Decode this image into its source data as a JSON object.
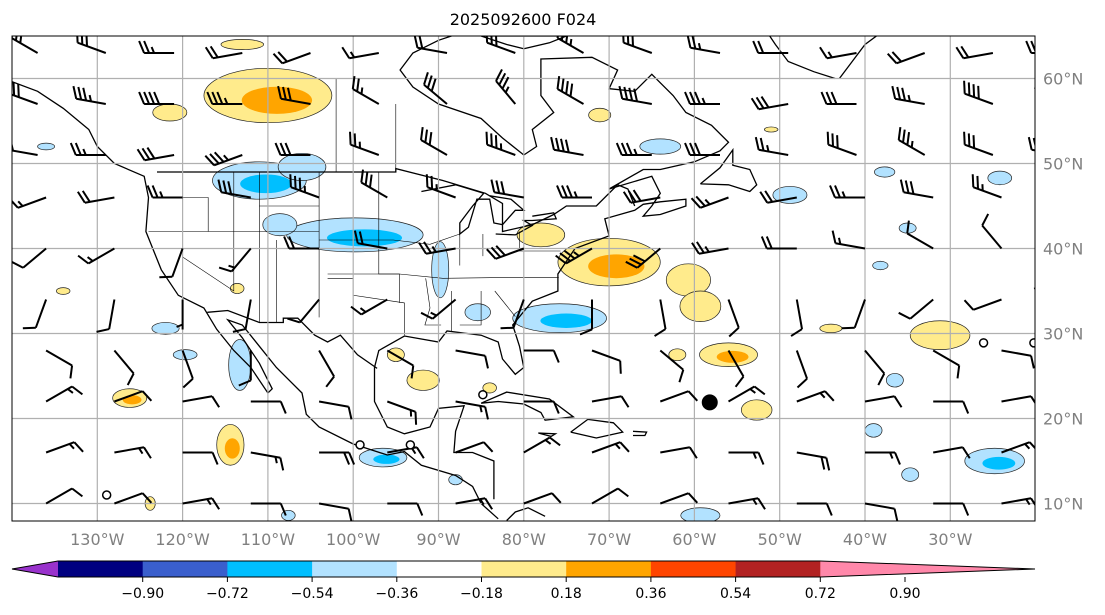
{
  "chart_data": {
    "type": "map",
    "title": "2025092600 F024",
    "extent": {
      "lon": [
        -140,
        -20
      ],
      "lat": [
        7.9,
        65
      ]
    },
    "grid": true,
    "lat_ticks": [
      {
        "value": 60,
        "label": "60°N"
      },
      {
        "value": 50,
        "label": "50°N"
      },
      {
        "value": 40,
        "label": "40°N"
      },
      {
        "value": 30,
        "label": "30°N"
      },
      {
        "value": 20,
        "label": "20°N"
      },
      {
        "value": 10,
        "label": "10°N"
      }
    ],
    "lon_ticks": [
      {
        "value": -130,
        "label": "130°W"
      },
      {
        "value": -120,
        "label": "120°W"
      },
      {
        "value": -110,
        "label": "110°W"
      },
      {
        "value": -100,
        "label": "100°W"
      },
      {
        "value": -90,
        "label": "90°W"
      },
      {
        "value": -80,
        "label": "80°W"
      },
      {
        "value": -70,
        "label": "70°W"
      },
      {
        "value": -60,
        "label": "60°W"
      },
      {
        "value": -50,
        "label": "50°W"
      },
      {
        "value": -40,
        "label": "40°W"
      },
      {
        "value": -30,
        "label": "30°W"
      }
    ],
    "colorbar": {
      "extend": "both",
      "colors": [
        "#9932cc",
        "#000080",
        "#3a5fcd",
        "#00bfff",
        "#b2e2ff",
        "#ffffff",
        "#ffeb8c",
        "#ffa500",
        "#ff4500",
        "#b22222",
        "#ff88aa"
      ],
      "levels": [
        -0.9,
        -0.72,
        -0.54,
        -0.36,
        -0.18,
        0.18,
        0.36,
        0.54,
        0.72,
        0.9
      ],
      "labels": [
        "−0.90",
        "−0.72",
        "−0.54",
        "−0.36",
        "−0.18",
        "0.18",
        "0.36",
        "0.54",
        "0.72",
        "0.90"
      ]
    },
    "contour_areas": [
      {
        "lon": -110,
        "lat": 58,
        "rx": 7.5,
        "ry": 3.2,
        "value": 0.4
      },
      {
        "lon": -113,
        "lat": 64,
        "rx": 2.5,
        "ry": 0.6,
        "value": 0.2
      },
      {
        "lon": -121.5,
        "lat": 56,
        "rx": 2,
        "ry": 1,
        "value": 0.2
      },
      {
        "lon": -70,
        "lat": 38.4,
        "rx": 6,
        "ry": 2.8,
        "value": 0.45
      },
      {
        "lon": -78,
        "lat": 41.6,
        "rx": 2.8,
        "ry": 1.4,
        "value": 0.2
      },
      {
        "lon": -60.7,
        "lat": 36.3,
        "rx": 2.6,
        "ry": 1.9,
        "value": 0.2
      },
      {
        "lon": -59.3,
        "lat": 33.2,
        "rx": 2.4,
        "ry": 1.8,
        "value": 0.2
      },
      {
        "lon": -56,
        "lat": 27.5,
        "rx": 3.4,
        "ry": 1.4,
        "value": 0.4
      },
      {
        "lon": -62,
        "lat": 27.5,
        "rx": 1,
        "ry": 0.7,
        "value": 0.2
      },
      {
        "lon": -52.7,
        "lat": 21,
        "rx": 1.8,
        "ry": 1.2,
        "value": 0.2
      },
      {
        "lon": -31.2,
        "lat": 29.8,
        "rx": 3.5,
        "ry": 1.7,
        "value": 0.25
      },
      {
        "lon": -44,
        "lat": 30.6,
        "rx": 1.3,
        "ry": 0.5,
        "value": 0.2
      },
      {
        "lon": -126.2,
        "lat": 22.4,
        "rx": 2,
        "ry": 1.1,
        "value": 0.4
      },
      {
        "lon": -114.4,
        "lat": 16.9,
        "rx": 1.6,
        "ry": 2.4,
        "value": 0.4
      },
      {
        "lon": -91.8,
        "lat": 24.5,
        "rx": 1.9,
        "ry": 1.2,
        "value": 0.2
      },
      {
        "lon": -95,
        "lat": 27.5,
        "rx": 1,
        "ry": 0.8,
        "value": 0.2
      },
      {
        "lon": -84,
        "lat": 23.6,
        "rx": 0.8,
        "ry": 0.6,
        "value": 0.2
      },
      {
        "lon": -134,
        "lat": 35,
        "rx": 0.8,
        "ry": 0.4,
        "value": 0.2
      },
      {
        "lon": -113.6,
        "lat": 35.3,
        "rx": 0.8,
        "ry": 0.6,
        "value": 0.2
      },
      {
        "lon": -123.8,
        "lat": 10,
        "rx": 0.6,
        "ry": 0.8,
        "value": 0.2
      },
      {
        "lon": -71.1,
        "lat": 55.7,
        "rx": 1.3,
        "ry": 0.8,
        "value": 0.2
      },
      {
        "lon": -51,
        "lat": 54,
        "rx": 0.8,
        "ry": 0.3,
        "value": 0.2
      },
      {
        "lon": -111,
        "lat": 48,
        "rx": 5.5,
        "ry": 2.2,
        "value": -0.4
      },
      {
        "lon": -106,
        "lat": 49.6,
        "rx": 2.8,
        "ry": 1.6,
        "value": -0.2
      },
      {
        "lon": -99.8,
        "lat": 41.6,
        "rx": 8,
        "ry": 2,
        "value": -0.42
      },
      {
        "lon": -108.6,
        "lat": 42.8,
        "rx": 2,
        "ry": 1.3,
        "value": -0.2
      },
      {
        "lon": -89.8,
        "lat": 37.5,
        "rx": 1,
        "ry": 3.3,
        "value": -0.25
      },
      {
        "lon": -75.8,
        "lat": 31.8,
        "rx": 5.5,
        "ry": 1.7,
        "value": -0.4
      },
      {
        "lon": -85.4,
        "lat": 32.5,
        "rx": 1.5,
        "ry": 1,
        "value": -0.2
      },
      {
        "lon": -113.3,
        "lat": 26.3,
        "rx": 1.3,
        "ry": 3,
        "value": -0.2
      },
      {
        "lon": -122,
        "lat": 30.6,
        "rx": 1.6,
        "ry": 0.7,
        "value": -0.2
      },
      {
        "lon": -119.7,
        "lat": 27.5,
        "rx": 1.4,
        "ry": 0.6,
        "value": -0.2
      },
      {
        "lon": -64,
        "lat": 52,
        "rx": 2.4,
        "ry": 0.9,
        "value": -0.2
      },
      {
        "lon": -48.8,
        "lat": 46.3,
        "rx": 2,
        "ry": 1,
        "value": -0.2
      },
      {
        "lon": -37.7,
        "lat": 49,
        "rx": 1.2,
        "ry": 0.6,
        "value": -0.2
      },
      {
        "lon": -24.2,
        "lat": 48.3,
        "rx": 1.4,
        "ry": 0.8,
        "value": -0.2
      },
      {
        "lon": -35,
        "lat": 42.4,
        "rx": 1,
        "ry": 0.6,
        "value": -0.2
      },
      {
        "lon": -38.2,
        "lat": 38,
        "rx": 0.9,
        "ry": 0.5,
        "value": -0.2
      },
      {
        "lon": -36.5,
        "lat": 24.5,
        "rx": 1,
        "ry": 0.8,
        "value": -0.2
      },
      {
        "lon": -39,
        "lat": 18.6,
        "rx": 1,
        "ry": 0.8,
        "value": -0.2
      },
      {
        "lon": -24.8,
        "lat": 15,
        "rx": 3.5,
        "ry": 1.5,
        "value": -0.42
      },
      {
        "lon": -34.7,
        "lat": 13.4,
        "rx": 1,
        "ry": 0.8,
        "value": -0.2
      },
      {
        "lon": -96.5,
        "lat": 15.4,
        "rx": 2.8,
        "ry": 1.1,
        "value": -0.4
      },
      {
        "lon": -88,
        "lat": 12.8,
        "rx": 0.8,
        "ry": 0.6,
        "value": -0.2
      },
      {
        "lon": -59.3,
        "lat": 8.6,
        "rx": 2.3,
        "ry": 0.9,
        "value": -0.2
      },
      {
        "lon": -136,
        "lat": 52,
        "rx": 1,
        "ry": 0.4,
        "value": -0.2
      },
      {
        "lon": -107.6,
        "lat": 8.6,
        "rx": 0.8,
        "ry": 0.6,
        "value": -0.2
      }
    ],
    "wind_barbs": {
      "lon_start": -137,
      "lon_step": 8,
      "rows": [
        {
          "lat": 63,
          "dir": [
            300,
            290,
            270,
            260,
            250,
            260,
            280,
            290,
            300,
            290,
            280,
            270,
            260,
            250,
            260,
            270
          ],
          "speed": [
            25,
            30,
            25,
            20,
            20,
            15,
            20,
            30,
            35,
            30,
            25,
            20,
            15,
            20,
            20,
            25
          ]
        },
        {
          "lat": 57,
          "dir": [
            290,
            280,
            270,
            270,
            280,
            300,
            310,
            320,
            300,
            280,
            270,
            260,
            270,
            280,
            290,
            300
          ],
          "speed": [
            30,
            35,
            40,
            35,
            30,
            25,
            30,
            35,
            40,
            40,
            35,
            30,
            30,
            35,
            40,
            35
          ]
        },
        {
          "lat": 51,
          "dir": [
            280,
            270,
            260,
            250,
            270,
            290,
            300,
            290,
            280,
            270,
            270,
            280,
            290,
            300,
            290,
            280
          ],
          "speed": [
            20,
            25,
            30,
            35,
            30,
            25,
            30,
            35,
            40,
            35,
            30,
            25,
            30,
            35,
            30,
            25
          ]
        },
        {
          "lat": 46,
          "dir": [
            250,
            260,
            270,
            280,
            290,
            300,
            290,
            280,
            270,
            260,
            250,
            260,
            270,
            280,
            290,
            300
          ],
          "speed": [
            15,
            20,
            25,
            30,
            35,
            30,
            25,
            30,
            35,
            30,
            25,
            20,
            25,
            30,
            25,
            20
          ]
        },
        {
          "lat": 40,
          "dir": [
            230,
            240,
            200,
            220,
            270,
            280,
            260,
            250,
            240,
            230,
            260,
            270,
            280,
            300,
            320,
            330
          ],
          "speed": [
            10,
            15,
            10,
            15,
            20,
            20,
            25,
            30,
            35,
            30,
            25,
            20,
            15,
            10,
            10,
            10
          ]
        },
        {
          "lat": 34,
          "dir": [
            200,
            190,
            180,
            190,
            220,
            240,
            230,
            200,
            180,
            170,
            160,
            170,
            200,
            230,
            250,
            270
          ],
          "speed": [
            10,
            10,
            5,
            10,
            10,
            15,
            15,
            10,
            10,
            10,
            10,
            10,
            10,
            10,
            10,
            10
          ]
        },
        {
          "lat": 28,
          "dir": [
            120,
            140,
            160,
            180,
            150,
            120,
            100,
            90,
            110,
            130,
            150,
            160,
            140,
            120,
            100,
            90
          ],
          "speed": [
            10,
            10,
            10,
            10,
            10,
            10,
            10,
            10,
            10,
            10,
            10,
            10,
            10,
            10,
            10,
            10
          ]
        },
        {
          "lat": 22,
          "dir": [
            60,
            70,
            80,
            90,
            100,
            110,
            100,
            90,
            80,
            70,
            60,
            70,
            80,
            90,
            80,
            70
          ],
          "speed": [
            15,
            10,
            10,
            10,
            10,
            15,
            15,
            10,
            10,
            10,
            15,
            15,
            10,
            10,
            10,
            10
          ]
        },
        {
          "lat": 16,
          "dir": [
            70,
            80,
            90,
            100,
            90,
            80,
            70,
            60,
            70,
            80,
            90,
            100,
            90,
            80,
            70,
            60
          ],
          "speed": [
            15,
            15,
            10,
            15,
            20,
            15,
            10,
            15,
            15,
            10,
            15,
            20,
            15,
            10,
            15,
            15
          ]
        },
        {
          "lat": 10,
          "dir": [
            60,
            70,
            80,
            90,
            100,
            90,
            80,
            70,
            60,
            70,
            80,
            90,
            100,
            90,
            80,
            70
          ],
          "speed": [
            10,
            10,
            15,
            10,
            10,
            10,
            15,
            10,
            10,
            10,
            15,
            10,
            10,
            10,
            15,
            10
          ]
        }
      ]
    },
    "markers": {
      "filled": [
        {
          "lon": -58.2,
          "lat": 21.9
        }
      ],
      "open": [
        {
          "lon": -128.9,
          "lat": 11
        },
        {
          "lon": -99.2,
          "lat": 16.9
        },
        {
          "lon": -93.3,
          "lat": 16.9
        },
        {
          "lon": -84.8,
          "lat": 22.8
        },
        {
          "lon": -26.1,
          "lat": 28.9
        },
        {
          "lon": -20.2,
          "lat": 28.9
        }
      ]
    }
  }
}
